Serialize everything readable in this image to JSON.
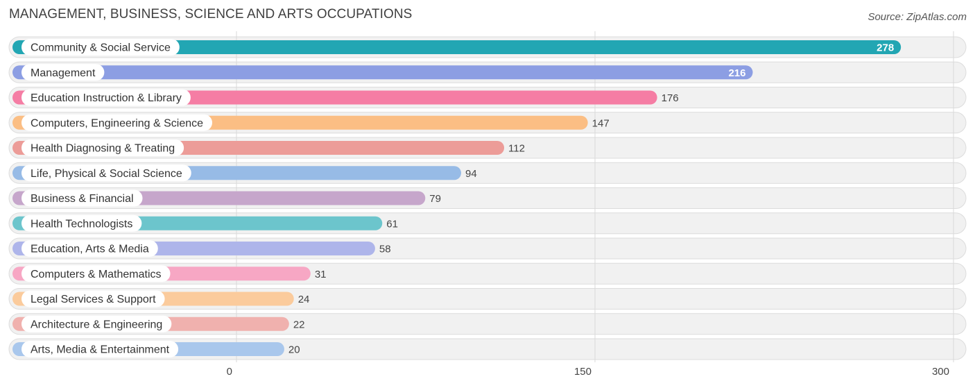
{
  "header": {
    "title": "MANAGEMENT, BUSINESS, SCIENCE AND ARTS OCCUPATIONS",
    "source": "Source: ZipAtlas.com"
  },
  "chart_data": {
    "type": "bar",
    "orientation": "horizontal",
    "title": "MANAGEMENT, BUSINESS, SCIENCE AND ARTS OCCUPATIONS",
    "xlabel": "",
    "ylabel": "",
    "xlim": [
      0,
      300
    ],
    "ticks": [
      "0",
      "150",
      "300"
    ],
    "tick_values": [
      0,
      150,
      300
    ],
    "grid": true,
    "categories": [
      "Community & Social Service",
      "Management",
      "Education Instruction & Library",
      "Computers, Engineering & Science",
      "Health Diagnosing & Treating",
      "Life, Physical & Social Science",
      "Business & Financial",
      "Health Technologists",
      "Education, Arts & Media",
      "Computers & Mathematics",
      "Legal Services & Support",
      "Architecture & Engineering",
      "Arts, Media & Entertainment"
    ],
    "values": [
      278,
      216,
      176,
      147,
      112,
      94,
      79,
      61,
      58,
      31,
      24,
      22,
      20
    ],
    "colors": [
      "#22a6b3",
      "#8c9ee3",
      "#f57da4",
      "#fbbe84",
      "#ec9c98",
      "#97bbe6",
      "#c6a6cb",
      "#6cc5cc",
      "#aeb5ea",
      "#f7a7c4",
      "#fbcb9c",
      "#f0b1ae",
      "#a9c7ec"
    ]
  }
}
